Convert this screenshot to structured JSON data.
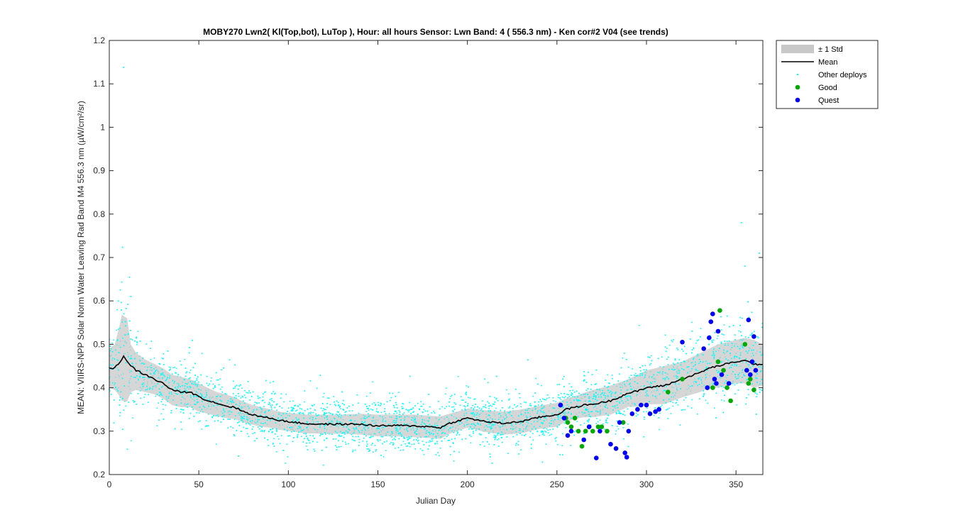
{
  "chart_data": {
    "type": "scatter",
    "title": "MOBY270   Lwn2( Kl(Top,bot), LuTop ),   Hour: all hours  Sensor: Lwn Band: 4 ( 556.3 nm)  - Ken cor#2 V04 (see trends)",
    "xlabel": "Julian Day",
    "ylabel": "MEAN: VIIRS-NPP Solar Norm Water Leaving Rad Band M4 556.3 nm (µW/cm²/sr)",
    "xlim": [
      0,
      365
    ],
    "ylim": [
      0.2,
      1.2
    ],
    "xticks": [
      0,
      50,
      100,
      150,
      200,
      250,
      300,
      350
    ],
    "yticks": [
      0.2,
      0.3,
      0.4,
      0.5,
      0.6,
      0.7,
      0.8,
      0.9,
      1,
      1.1,
      1.2
    ],
    "grid": false,
    "legend_position": "outside-top-right",
    "legend": [
      {
        "label": "± 1 Std",
        "kind": "patch",
        "color": "#c8c8c8"
      },
      {
        "label": "Mean",
        "kind": "line",
        "color": "#000000"
      },
      {
        "label": "Other deploys",
        "kind": "point",
        "color": "#00ffff"
      },
      {
        "label": "Good",
        "kind": "marker",
        "color": "#00aa00"
      },
      {
        "label": "Quest",
        "kind": "marker",
        "color": "#0000ff"
      }
    ],
    "mean_series": {
      "name": "Mean",
      "x": [
        0,
        3,
        5,
        8,
        10,
        12,
        15,
        20,
        25,
        30,
        35,
        40,
        45,
        50,
        55,
        60,
        65,
        70,
        75,
        80,
        85,
        90,
        95,
        100,
        110,
        120,
        130,
        140,
        150,
        160,
        170,
        180,
        185,
        190,
        200,
        210,
        220,
        230,
        240,
        245,
        250,
        255,
        260,
        265,
        270,
        280,
        290,
        295,
        300,
        310,
        320,
        330,
        335,
        340,
        345,
        350,
        355,
        360,
        365
      ],
      "y": [
        0.445,
        0.445,
        0.455,
        0.472,
        0.462,
        0.45,
        0.44,
        0.43,
        0.42,
        0.41,
        0.395,
        0.39,
        0.39,
        0.38,
        0.37,
        0.365,
        0.358,
        0.355,
        0.345,
        0.338,
        0.333,
        0.33,
        0.325,
        0.322,
        0.317,
        0.316,
        0.316,
        0.316,
        0.312,
        0.313,
        0.312,
        0.31,
        0.308,
        0.318,
        0.33,
        0.322,
        0.318,
        0.322,
        0.332,
        0.335,
        0.338,
        0.35,
        0.355,
        0.36,
        0.362,
        0.37,
        0.388,
        0.392,
        0.4,
        0.405,
        0.42,
        0.435,
        0.445,
        0.45,
        0.455,
        0.46,
        0.462,
        0.455,
        0.452
      ]
    },
    "std_band": {
      "x": [
        0,
        3,
        5,
        7,
        10,
        12,
        15,
        20,
        25,
        30,
        35,
        40,
        45,
        50,
        55,
        60,
        65,
        70,
        75,
        80,
        85,
        90,
        95,
        100,
        110,
        120,
        130,
        140,
        150,
        160,
        170,
        180,
        185,
        190,
        200,
        210,
        220,
        230,
        240,
        245,
        250,
        255,
        260,
        265,
        270,
        280,
        290,
        295,
        300,
        310,
        320,
        330,
        335,
        340,
        345,
        350,
        355,
        360,
        365
      ],
      "upper": [
        0.49,
        0.5,
        0.53,
        0.568,
        0.56,
        0.5,
        0.48,
        0.465,
        0.455,
        0.445,
        0.43,
        0.425,
        0.42,
        0.41,
        0.4,
        0.39,
        0.385,
        0.378,
        0.368,
        0.36,
        0.355,
        0.35,
        0.345,
        0.342,
        0.338,
        0.338,
        0.338,
        0.34,
        0.338,
        0.338,
        0.338,
        0.335,
        0.334,
        0.34,
        0.352,
        0.348,
        0.345,
        0.35,
        0.358,
        0.362,
        0.365,
        0.375,
        0.38,
        0.388,
        0.395,
        0.405,
        0.42,
        0.43,
        0.44,
        0.45,
        0.46,
        0.48,
        0.49,
        0.5,
        0.505,
        0.51,
        0.515,
        0.51,
        0.5
      ],
      "lower": [
        0.4,
        0.395,
        0.385,
        0.37,
        0.368,
        0.39,
        0.395,
        0.39,
        0.385,
        0.375,
        0.36,
        0.355,
        0.355,
        0.345,
        0.34,
        0.335,
        0.33,
        0.328,
        0.32,
        0.315,
        0.31,
        0.308,
        0.303,
        0.3,
        0.295,
        0.294,
        0.294,
        0.292,
        0.288,
        0.288,
        0.286,
        0.284,
        0.282,
        0.294,
        0.308,
        0.298,
        0.292,
        0.295,
        0.305,
        0.308,
        0.31,
        0.322,
        0.328,
        0.332,
        0.332,
        0.338,
        0.356,
        0.356,
        0.362,
        0.362,
        0.378,
        0.39,
        0.4,
        0.4,
        0.405,
        0.41,
        0.41,
        0.4,
        0.405
      ]
    },
    "other_deploys_note_spread": 0.03,
    "other_deploys_outliers": [
      {
        "x": 8,
        "y": 1.138
      },
      {
        "x": 353,
        "y": 0.78
      },
      {
        "x": 363,
        "y": 0.71
      },
      {
        "x": 355,
        "y": 0.68
      },
      {
        "x": 5,
        "y": 0.6
      },
      {
        "x": 12,
        "y": 0.61
      }
    ],
    "good_series": {
      "name": "Good",
      "x": [
        252,
        255,
        256,
        258,
        260,
        262,
        264,
        266,
        268,
        270,
        273,
        275,
        278,
        287,
        312,
        320,
        334,
        337,
        340,
        341,
        343,
        345,
        347,
        355,
        357,
        358,
        360
      ],
      "y": [
        0.36,
        0.33,
        0.32,
        0.31,
        0.33,
        0.3,
        0.265,
        0.3,
        0.31,
        0.3,
        0.31,
        0.31,
        0.3,
        0.32,
        0.39,
        0.42,
        0.4,
        0.4,
        0.46,
        0.578,
        0.44,
        0.4,
        0.37,
        0.5,
        0.41,
        0.42,
        0.395
      ]
    },
    "quest_series": {
      "name": "Quest",
      "x": [
        252,
        254,
        256,
        258,
        265,
        268,
        272,
        274,
        280,
        283,
        285,
        288,
        289,
        290,
        292,
        295,
        297,
        300,
        302,
        305,
        307,
        320,
        332,
        334,
        335,
        336,
        337,
        338,
        339,
        340,
        342,
        346,
        356,
        357,
        358,
        359,
        360,
        361
      ],
      "y": [
        0.36,
        0.33,
        0.29,
        0.3,
        0.28,
        0.31,
        0.238,
        0.3,
        0.27,
        0.26,
        0.32,
        0.25,
        0.24,
        0.3,
        0.34,
        0.35,
        0.36,
        0.36,
        0.34,
        0.345,
        0.35,
        0.505,
        0.49,
        0.4,
        0.515,
        0.552,
        0.57,
        0.42,
        0.41,
        0.53,
        0.43,
        0.41,
        0.44,
        0.556,
        0.43,
        0.46,
        0.518,
        0.44
      ]
    }
  }
}
